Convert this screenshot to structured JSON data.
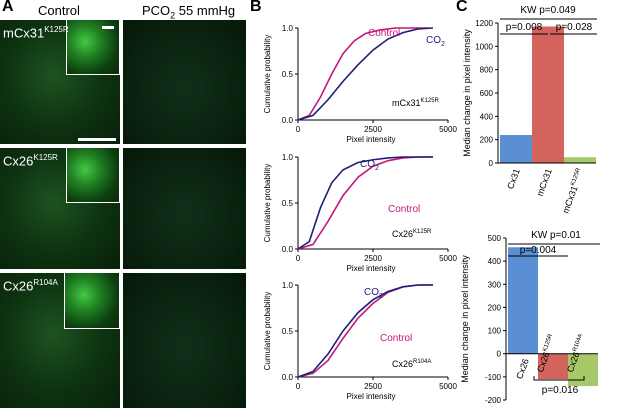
{
  "panel_a": {
    "letter": "A",
    "col_control": "Control",
    "col_pco2": "PCO",
    "col_pco2_sub": "2",
    "col_pco2_rest": " 55 mmHg",
    "rows": [
      {
        "base": "mCx31",
        "sup": "K125R"
      },
      {
        "base": "Cx26",
        "sup": "K125R"
      },
      {
        "base": "Cx26",
        "sup": "R104A"
      }
    ]
  },
  "panel_b": {
    "letter": "B",
    "ylabel": "Cumulative probability",
    "xlabel": "Pixel intensity",
    "colors": {
      "control": "#c2187a",
      "co2": "#1f1f7a"
    },
    "plots": [
      {
        "tag_base": "mCx31",
        "tag_sup": "K125R",
        "control_label": "Control",
        "co2_label": "CO",
        "co2_sub": "2"
      },
      {
        "tag_base": "Cx26",
        "tag_sup": "K125R",
        "control_label": "Control",
        "co2_label": "CO",
        "co2_sub": "2"
      },
      {
        "tag_base": "Cx26",
        "tag_sup": "R104A",
        "control_label": "Control",
        "co2_label": "CO",
        "co2_sub": "2"
      }
    ]
  },
  "panel_c": {
    "letter": "C"
  },
  "chart_data": [
    {
      "type": "line",
      "xlabel": "Pixel intensity",
      "ylabel": "Cumulative probability",
      "xlim": [
        0,
        4000
      ],
      "ylim": [
        0,
        1
      ],
      "xticks": [
        "0",
        "2500",
        "5000"
      ],
      "yticks": [
        "0.0",
        "0.5",
        "1.0"
      ],
      "annotation": "mCx31K125R",
      "series": [
        {
          "name": "Control",
          "x": [
            0,
            300,
            600,
            900,
            1200,
            1500,
            1800,
            2200,
            2600,
            3500
          ],
          "y": [
            0,
            0.05,
            0.25,
            0.5,
            0.72,
            0.86,
            0.94,
            0.98,
            1.0,
            1.0
          ]
        },
        {
          "name": "CO2",
          "x": [
            0,
            400,
            800,
            1200,
            1600,
            2000,
            2400,
            2800,
            3200,
            3600
          ],
          "y": [
            0,
            0.05,
            0.22,
            0.42,
            0.6,
            0.76,
            0.88,
            0.95,
            0.99,
            1.0
          ]
        }
      ]
    },
    {
      "type": "line",
      "xlabel": "Pixel intensity",
      "ylabel": "Cumulative probability",
      "xlim": [
        0,
        4000
      ],
      "ylim": [
        0,
        1
      ],
      "xticks": [
        "0",
        "2500",
        "5000"
      ],
      "yticks": [
        "0.0",
        "0.5",
        "1.0"
      ],
      "annotation": "Cx26K125R",
      "series": [
        {
          "name": "Control",
          "x": [
            0,
            400,
            800,
            1200,
            1600,
            2000,
            2400,
            2800,
            3200,
            3600
          ],
          "y": [
            0,
            0.05,
            0.3,
            0.58,
            0.78,
            0.9,
            0.96,
            0.99,
            1.0,
            1.0
          ]
        },
        {
          "name": "CO2",
          "x": [
            0,
            300,
            600,
            900,
            1200,
            1600,
            2000,
            2400,
            2800,
            3600
          ],
          "y": [
            0,
            0.08,
            0.45,
            0.72,
            0.86,
            0.94,
            0.97,
            0.99,
            1.0,
            1.0
          ]
        }
      ]
    },
    {
      "type": "line",
      "xlabel": "Pixel intensity",
      "ylabel": "Cumulative probability",
      "xlim": [
        0,
        4000
      ],
      "ylim": [
        0,
        1
      ],
      "xticks": [
        "0",
        "2500",
        "5000"
      ],
      "yticks": [
        "0.0",
        "0.5",
        "1.0"
      ],
      "annotation": "Cx26R104A",
      "series": [
        {
          "name": "Control",
          "x": [
            0,
            400,
            800,
            1200,
            1600,
            2000,
            2400,
            2800,
            3200,
            3600
          ],
          "y": [
            0,
            0.04,
            0.18,
            0.42,
            0.64,
            0.8,
            0.92,
            0.98,
            1.0,
            1.0
          ]
        },
        {
          "name": "CO2",
          "x": [
            0,
            400,
            800,
            1200,
            1600,
            2000,
            2400,
            2800,
            3200,
            3600
          ],
          "y": [
            0,
            0.06,
            0.25,
            0.5,
            0.7,
            0.84,
            0.93,
            0.98,
            1.0,
            1.0
          ]
        }
      ]
    },
    {
      "type": "bar",
      "ylabel": "Median change in pixel intensity",
      "ylim": [
        0,
        1200
      ],
      "yticks": [
        "0",
        "200",
        "400",
        "600",
        "800",
        "1000",
        "1200"
      ],
      "categories": [
        "Cx31",
        "mCx31",
        "mCx31K125R"
      ],
      "values": [
        240,
        1170,
        50
      ],
      "colors": [
        "#5b8fd4",
        "#d3645d",
        "#a7c96a"
      ],
      "stats": {
        "kw": "KW p=0.049",
        "p1": "p=0.008",
        "p2": "p=0.028"
      }
    },
    {
      "type": "bar",
      "ylabel": "Median change in pixel intensity",
      "ylim": [
        -200,
        500
      ],
      "yticks": [
        "-200",
        "-100",
        "0",
        "100",
        "200",
        "300",
        "400",
        "500"
      ],
      "categories": [
        "Cx26",
        "Cx26K125R",
        "Cx26R104A"
      ],
      "values": [
        460,
        -110,
        -140
      ],
      "colors": [
        "#5b8fd4",
        "#d3645d",
        "#a7c96a"
      ],
      "stats": {
        "kw": "KW p=0.01",
        "p1": "p=0.004",
        "p2": "p=0.016"
      }
    }
  ]
}
